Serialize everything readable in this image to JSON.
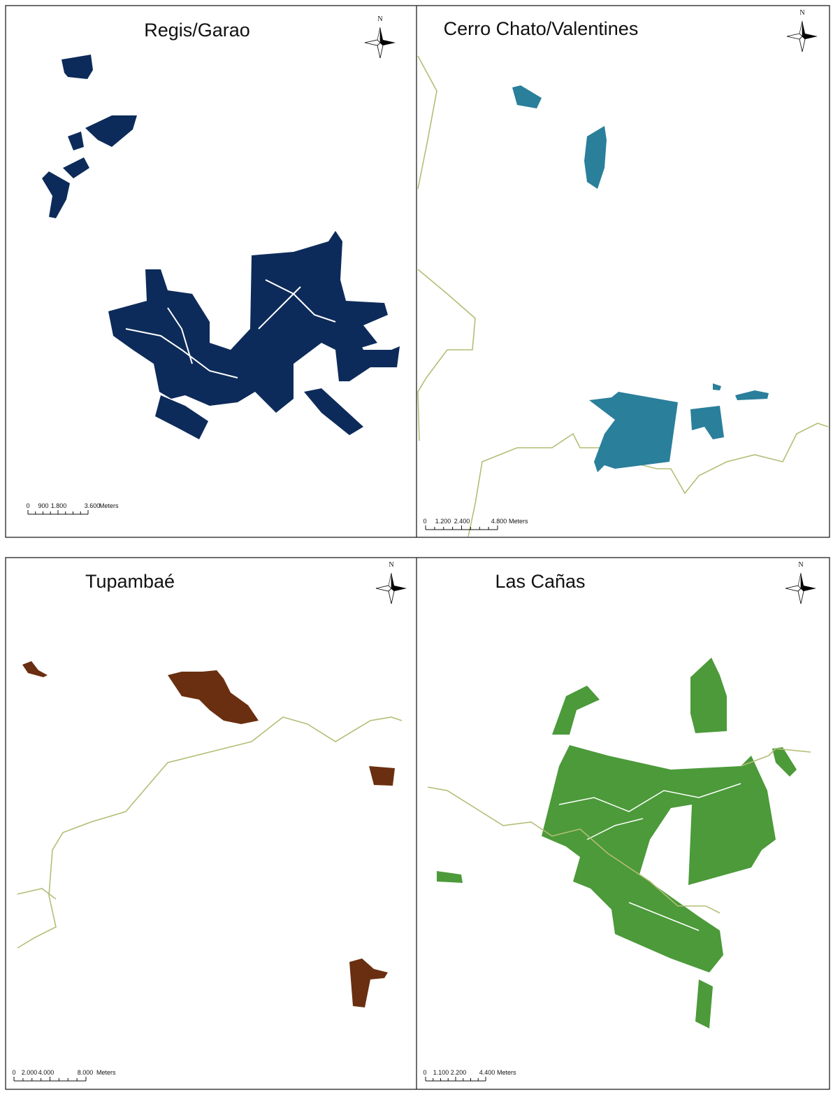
{
  "panels": [
    {
      "title": "Regis/Garao",
      "north": "N",
      "scale_labels": [
        "0",
        "900",
        "1.800",
        "3.600"
      ],
      "scale_unit": "Meters"
    },
    {
      "title": "Cerro Chato/Valentines",
      "north": "N",
      "scale_labels": [
        "0",
        "1.200",
        "2.400",
        "4.800"
      ],
      "scale_unit": "Meters"
    },
    {
      "title": "Tupambaé",
      "north": "N",
      "scale_labels": [
        "0",
        "2.000",
        "4.000",
        "8.000"
      ],
      "scale_unit": "Meters"
    },
    {
      "title": "Las Cañas",
      "north": "N",
      "scale_labels": [
        "0",
        "1.100",
        "2.200",
        "4.400"
      ],
      "scale_unit": "Meters"
    }
  ]
}
